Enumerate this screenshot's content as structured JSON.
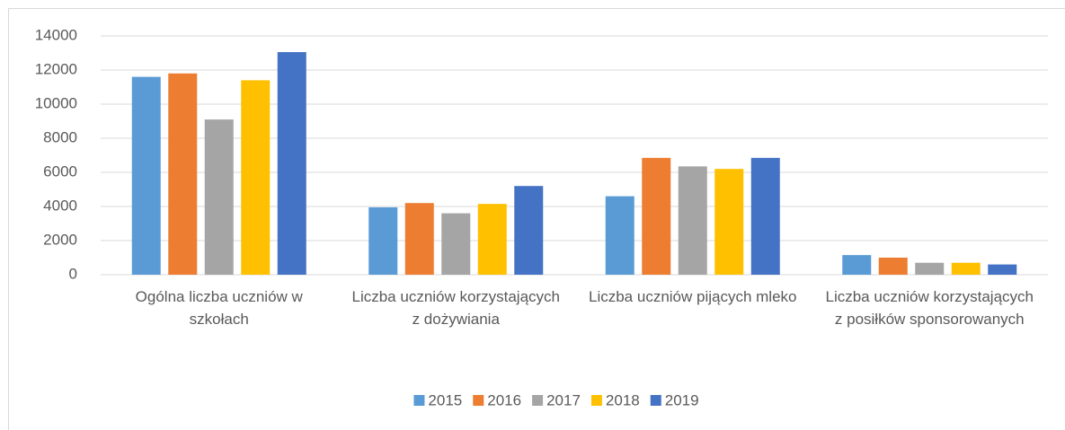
{
  "chart_data": {
    "type": "bar",
    "categories": [
      "Ogólna liczba uczniów w szkołach",
      "Liczba uczniów korzystających z dożywiania",
      "Liczba uczniów pijących mleko",
      "Liczba uczniów korzystających z posiłków sponsorowanych"
    ],
    "series": [
      {
        "name": "2015",
        "color": "#5b9bd5",
        "values": [
          11600,
          3950,
          4600,
          1150
        ]
      },
      {
        "name": "2016",
        "color": "#ed7d31",
        "values": [
          11800,
          4200,
          6850,
          1000
        ]
      },
      {
        "name": "2017",
        "color": "#a5a5a5",
        "values": [
          9100,
          3600,
          6350,
          700
        ]
      },
      {
        "name": "2018",
        "color": "#ffc000",
        "values": [
          11400,
          4150,
          6200,
          700
        ]
      },
      {
        "name": "2019",
        "color": "#4472c4",
        "values": [
          13050,
          5200,
          6850,
          600
        ]
      }
    ],
    "ylim": [
      0,
      14000
    ],
    "yticks": [
      0,
      2000,
      4000,
      6000,
      8000,
      10000,
      12000,
      14000
    ],
    "grid": true,
    "legend": "bottom"
  }
}
